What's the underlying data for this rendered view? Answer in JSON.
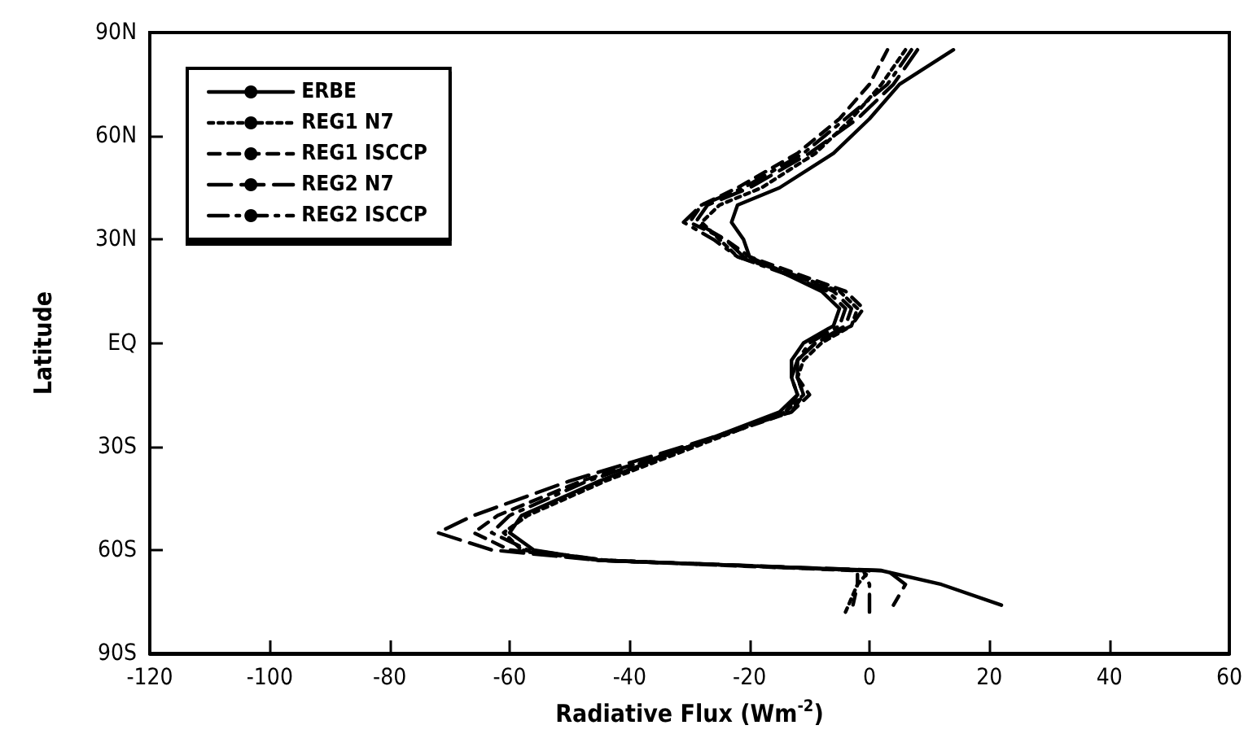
{
  "chart_data": {
    "type": "line",
    "xlabel": "Radiative Flux (Wm$^{-2}$)",
    "ylabel": "Latitude",
    "xlim": [
      -120,
      60
    ],
    "xticks": [
      -120,
      -100,
      -80,
      -60,
      -40,
      -20,
      0,
      20,
      40,
      60
    ],
    "ylim": [
      -90,
      90
    ],
    "yticks": [
      {
        "value": -90,
        "label": "90S"
      },
      {
        "value": -60,
        "label": "60S"
      },
      {
        "value": -30,
        "label": "30S"
      },
      {
        "value": 0,
        "label": "EQ"
      },
      {
        "value": 30,
        "label": "30N"
      },
      {
        "value": 60,
        "label": "60N"
      },
      {
        "value": 90,
        "label": "90N"
      }
    ],
    "grid": false,
    "legend": "top left",
    "marker": "none",
    "series": [
      {
        "name": "ERBE",
        "color": "#000000",
        "line_style": "solid",
        "x": [
          14,
          5,
          0,
          -6,
          -15,
          -22,
          -23,
          -21,
          -20,
          -14,
          -8,
          -5,
          -6,
          -11,
          -13,
          -13,
          -12,
          -15,
          -30,
          -45,
          -58,
          -60,
          -56,
          -45,
          2,
          12,
          22
        ],
        "values": [
          85,
          75,
          65,
          55,
          45,
          40,
          35,
          30,
          25,
          20,
          15,
          10,
          5,
          0,
          -5,
          -10,
          -15,
          -20,
          -30,
          -40,
          -50,
          -55,
          -60,
          -63,
          -66,
          -70,
          -76
        ]
      },
      {
        "name": "REG1 N7",
        "color": "#000000",
        "line_style": "dotted",
        "x": [
          6,
          2,
          -3,
          -9,
          -18,
          -25,
          -28,
          -25,
          -22,
          -13,
          -5,
          -2,
          -3,
          -8,
          -11,
          -12,
          -11,
          -14,
          -29,
          -44,
          -57,
          -61,
          -58,
          -44,
          0,
          -2,
          -4
        ],
        "values": [
          85,
          75,
          65,
          55,
          45,
          40,
          35,
          30,
          25,
          20,
          15,
          10,
          5,
          0,
          -5,
          -10,
          -15,
          -20,
          -30,
          -40,
          -50,
          -55,
          -60,
          -63,
          -66,
          -70,
          -78
        ]
      },
      {
        "name": "REG1 ISCCP",
        "color": "#000000",
        "line_style": "dashed",
        "x": [
          3,
          0,
          -5,
          -12,
          -22,
          -28,
          -30,
          -24,
          -20,
          -12,
          -4,
          -1,
          -3,
          -9,
          -12,
          -12,
          -10,
          -13,
          -30,
          -48,
          -62,
          -66,
          -60,
          -45,
          -2,
          -2,
          -3
        ],
        "values": [
          85,
          75,
          65,
          55,
          45,
          40,
          35,
          30,
          25,
          20,
          15,
          10,
          5,
          0,
          -5,
          -10,
          -15,
          -20,
          -30,
          -40,
          -50,
          -55,
          -60,
          -63,
          -66,
          -70,
          -78
        ]
      },
      {
        "name": "REG2 N7",
        "color": "#000000",
        "line_style": "longdash",
        "x": [
          8,
          4,
          -2,
          -10,
          -20,
          -27,
          -29,
          -24,
          -21,
          -13,
          -6,
          -3,
          -4,
          -9,
          -12,
          -12,
          -11,
          -13,
          -31,
          -50,
          -66,
          -72,
          -63,
          -45,
          3,
          6,
          4
        ],
        "values": [
          85,
          75,
          65,
          55,
          45,
          40,
          35,
          30,
          25,
          20,
          15,
          10,
          5,
          0,
          -5,
          -10,
          -15,
          -20,
          -30,
          -40,
          -50,
          -55,
          -60,
          -63,
          -66,
          -70,
          -76
        ]
      },
      {
        "name": "REG2 ISCCP",
        "color": "#000000",
        "line_style": "dashdot",
        "x": [
          7,
          3,
          -4,
          -11,
          -21,
          -28,
          -31,
          -26,
          -22,
          -14,
          -7,
          -4,
          -5,
          -10,
          -12,
          -13,
          -12,
          -14,
          -30,
          -47,
          -60,
          -63,
          -57,
          -44,
          -1,
          0,
          0
        ],
        "values": [
          85,
          75,
          65,
          55,
          45,
          40,
          35,
          30,
          25,
          20,
          15,
          10,
          5,
          0,
          -5,
          -10,
          -15,
          -20,
          -30,
          -40,
          -50,
          -55,
          -60,
          -63,
          -66,
          -70,
          -78
        ]
      }
    ]
  }
}
